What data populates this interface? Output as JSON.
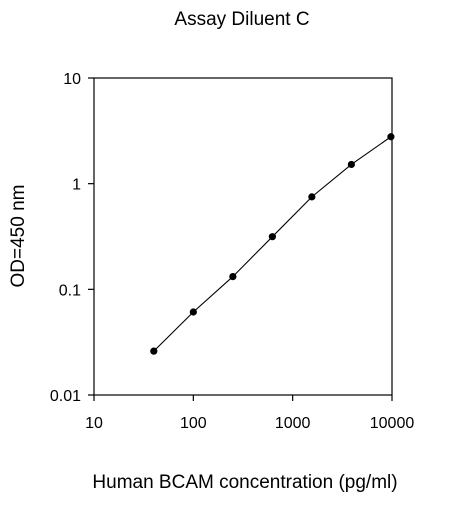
{
  "chart_data": {
    "type": "scatter",
    "title": "Assay Diluent C",
    "xlabel": "Human BCAM concentration (pg/ml)",
    "ylabel": "OD=450 nm",
    "xscale": "log",
    "yscale": "log",
    "xlim": [
      10,
      10000
    ],
    "ylim": [
      0.01,
      10
    ],
    "xticks": [
      10,
      100,
      1000,
      10000
    ],
    "yticks": [
      0.01,
      0.1,
      1,
      10
    ],
    "xtick_labels": [
      "10",
      "100",
      "1000",
      "10000"
    ],
    "ytick_labels": [
      "0.01",
      "0.1",
      "1",
      "10"
    ],
    "grid": false,
    "legend": "none",
    "series": [
      {
        "x": [
          40,
          100,
          250,
          625,
          1560,
          3900,
          9750
        ],
        "y": [
          0.026,
          0.061,
          0.132,
          0.315,
          0.75,
          1.52,
          2.78
        ],
        "line": true,
        "marker": "circle",
        "color": "#000000"
      }
    ]
  }
}
